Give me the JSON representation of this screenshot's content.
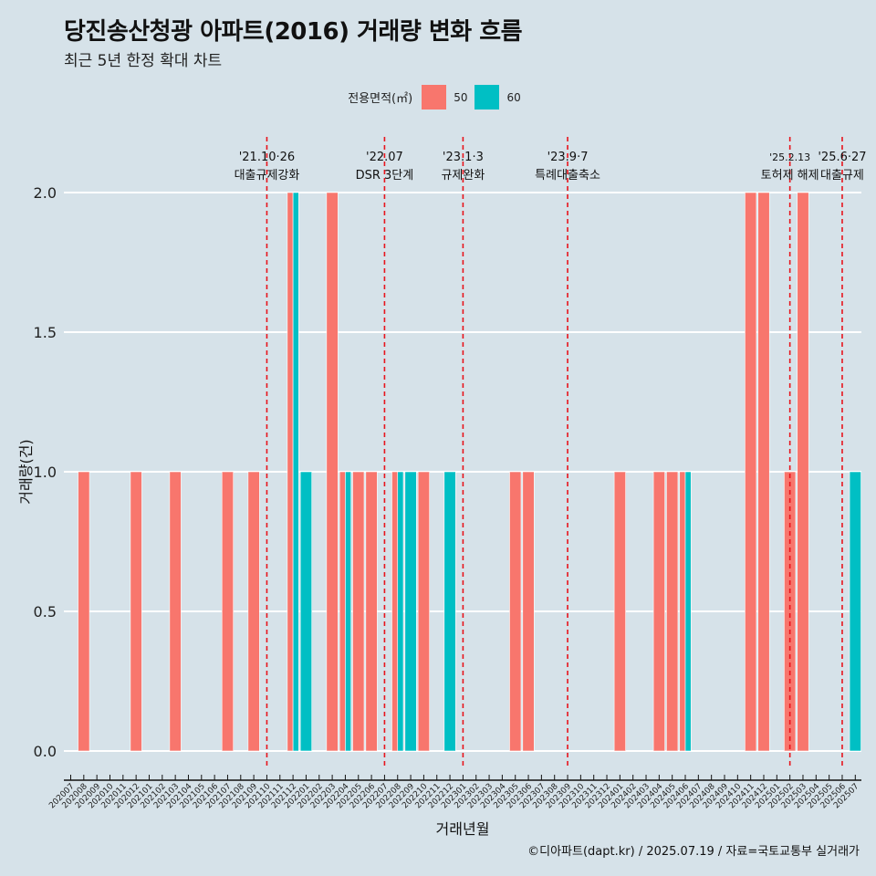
{
  "title": "당진송산청광 아파트(2016) 거래량 변화 흐름",
  "subtitle": "최근 5년 한정 확대 차트",
  "caption": "©디아파트(dapt.kr) / 2025.07.19 / 자료=국토교통부 실거래가",
  "legend": {
    "title": "전용면적(㎡)",
    "items": [
      {
        "label": "50",
        "color": "#f8766d"
      },
      {
        "label": "60",
        "color": "#00bfc4"
      }
    ]
  },
  "chart_data": {
    "type": "bar",
    "xlabel": "거래년월",
    "ylabel": "거래량(건)",
    "ylim": [
      0,
      2.0
    ],
    "yticks": [
      0.0,
      0.5,
      1.0,
      1.5,
      2.0
    ],
    "ytick_labels": [
      "0.0",
      "0.5",
      "1.0",
      "1.5",
      "2.0"
    ],
    "categories": [
      "202007",
      "202008",
      "202009",
      "202010",
      "202011",
      "202012",
      "202101",
      "202102",
      "202103",
      "202104",
      "202105",
      "202106",
      "202107",
      "202108",
      "202109",
      "202110",
      "202111",
      "202112",
      "202201",
      "202202",
      "202203",
      "202204",
      "202205",
      "202206",
      "202207",
      "202208",
      "202209",
      "202210",
      "202211",
      "202212",
      "202301",
      "202302",
      "202303",
      "202304",
      "202305",
      "202306",
      "202307",
      "202308",
      "202309",
      "202310",
      "202311",
      "202312",
      "202401",
      "202402",
      "202403",
      "202404",
      "202405",
      "202406",
      "202407",
      "202408",
      "202409",
      "202410",
      "202411",
      "202412",
      "202501",
      "202502",
      "202503",
      "202504",
      "202505",
      "202506",
      "202507"
    ],
    "bars": [
      {
        "month": "202008",
        "area": "50",
        "value": 1
      },
      {
        "month": "202012",
        "area": "50",
        "value": 1
      },
      {
        "month": "202103",
        "area": "50",
        "value": 1
      },
      {
        "month": "202107",
        "area": "50",
        "value": 1
      },
      {
        "month": "202109",
        "area": "50",
        "value": 1
      },
      {
        "month": "202112",
        "area": "50",
        "value": 2
      },
      {
        "month": "202112",
        "area": "60",
        "value": 2
      },
      {
        "month": "202201",
        "area": "60",
        "value": 1
      },
      {
        "month": "202203",
        "area": "50",
        "value": 2
      },
      {
        "month": "202204",
        "area": "50",
        "value": 1
      },
      {
        "month": "202204",
        "area": "60",
        "value": 1
      },
      {
        "month": "202205",
        "area": "50",
        "value": 1
      },
      {
        "month": "202206",
        "area": "50",
        "value": 1
      },
      {
        "month": "202208",
        "area": "50",
        "value": 1
      },
      {
        "month": "202208",
        "area": "60",
        "value": 1
      },
      {
        "month": "202209",
        "area": "60",
        "value": 1
      },
      {
        "month": "202210",
        "area": "50",
        "value": 1
      },
      {
        "month": "202212",
        "area": "60",
        "value": 1
      },
      {
        "month": "202305",
        "area": "50",
        "value": 1
      },
      {
        "month": "202306",
        "area": "50",
        "value": 1
      },
      {
        "month": "202401",
        "area": "50",
        "value": 1
      },
      {
        "month": "202404",
        "area": "50",
        "value": 1
      },
      {
        "month": "202405",
        "area": "50",
        "value": 1
      },
      {
        "month": "202406",
        "area": "50",
        "value": 1
      },
      {
        "month": "202406",
        "area": "60",
        "value": 1
      },
      {
        "month": "202411",
        "area": "50",
        "value": 2
      },
      {
        "month": "202412",
        "area": "50",
        "value": 2
      },
      {
        "month": "202502",
        "area": "50",
        "value": 1
      },
      {
        "month": "202503",
        "area": "50",
        "value": 2
      },
      {
        "month": "202507",
        "area": "60",
        "value": 1
      }
    ],
    "events": [
      {
        "month": "202110",
        "date": "'21.10·26",
        "label": "대출규제강화"
      },
      {
        "month": "202207",
        "date": "'22.07",
        "label": "DSR 3단계"
      },
      {
        "month": "202301",
        "date": "'23.1·3",
        "label": "규제완화"
      },
      {
        "month": "202309",
        "date": "'23.9·7",
        "label": "특례대출축소"
      },
      {
        "month": "202502",
        "date": "'25.2.13",
        "label": "토허제 해제",
        "small": true
      },
      {
        "month": "202506",
        "date": "'25.6·27",
        "label": "대출규제"
      }
    ]
  }
}
